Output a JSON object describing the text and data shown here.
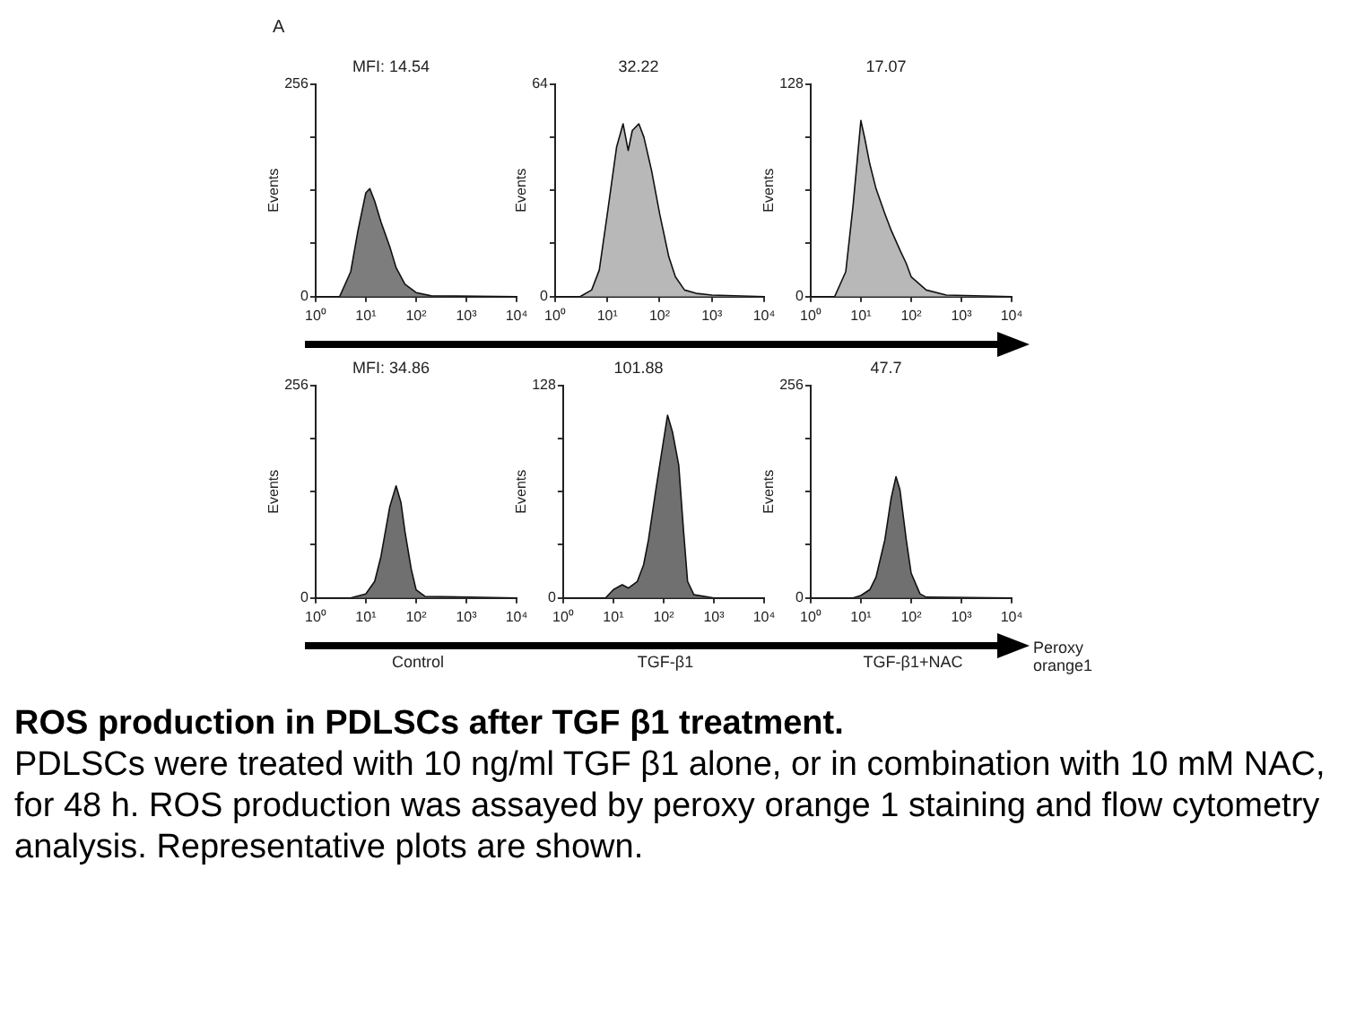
{
  "chart_data": [
    {
      "type": "area",
      "title": "MFI: 14.54",
      "ylabel": "Events",
      "annotations": [
        "A"
      ],
      "x": [
        1,
        3,
        5,
        7,
        10,
        12,
        15,
        20,
        30,
        40,
        60,
        100,
        200,
        10000
      ],
      "series": [
        {
          "color": "#7d7d7d",
          "values": [
            0,
            0,
            30,
            80,
            125,
            130,
            115,
            90,
            60,
            35,
            15,
            5,
            1,
            0
          ]
        }
      ],
      "xlim": [
        1,
        10000
      ],
      "xticks": [
        {
          "value": 1,
          "label": "10⁰"
        },
        {
          "value": 10,
          "label": "10¹"
        },
        {
          "value": 100,
          "label": "10²"
        },
        {
          "value": 1000,
          "label": "10³"
        },
        {
          "value": 10000,
          "label": "10⁴"
        }
      ],
      "ylim": [
        0,
        256
      ],
      "yticks": [
        0,
        {
          "value": 64,
          "label": null
        },
        {
          "value": 128,
          "label": null
        },
        {
          "value": 192,
          "label": null
        },
        256
      ],
      "log": "x"
    },
    {
      "type": "area",
      "title": "32.22",
      "ylabel": "Events",
      "x": [
        1,
        3,
        5,
        7,
        10,
        15,
        20,
        25,
        30,
        40,
        50,
        70,
        100,
        150,
        200,
        300,
        500,
        1000,
        10000
      ],
      "series": [
        {
          "color": "#b8b8b8",
          "values": [
            0,
            0,
            2,
            8,
            25,
            45,
            52,
            44,
            50,
            52,
            48,
            38,
            25,
            12,
            6,
            2,
            1,
            0.5,
            0
          ]
        }
      ],
      "xlim": [
        1,
        10000
      ],
      "xticks": [
        {
          "value": 1,
          "label": "10⁰"
        },
        {
          "value": 10,
          "label": "10¹"
        },
        {
          "value": 100,
          "label": "10²"
        },
        {
          "value": 1000,
          "label": "10³"
        },
        {
          "value": 10000,
          "label": "10⁴"
        }
      ],
      "ylim": [
        0,
        64
      ],
      "yticks": [
        0,
        {
          "value": 16,
          "label": null
        },
        {
          "value": 32,
          "label": null
        },
        {
          "value": 48,
          "label": null
        },
        64
      ],
      "log": "x"
    },
    {
      "type": "area",
      "title": "17.07",
      "ylabel": "Events",
      "x": [
        1,
        3,
        5,
        7,
        10,
        12,
        15,
        20,
        30,
        40,
        60,
        80,
        100,
        200,
        500,
        10000
      ],
      "series": [
        {
          "color": "#b8b8b8",
          "values": [
            0,
            0,
            15,
            55,
            106,
            95,
            80,
            65,
            50,
            40,
            28,
            20,
            12,
            4,
            1,
            0
          ]
        }
      ],
      "xlim": [
        1,
        10000
      ],
      "xticks": [
        {
          "value": 1,
          "label": "10⁰"
        },
        {
          "value": 10,
          "label": "10¹"
        },
        {
          "value": 100,
          "label": "10²"
        },
        {
          "value": 1000,
          "label": "10³"
        },
        {
          "value": 10000,
          "label": "10⁴"
        }
      ],
      "ylim": [
        0,
        128
      ],
      "yticks": [
        0,
        {
          "value": 32,
          "label": null
        },
        {
          "value": 64,
          "label": null
        },
        {
          "value": 96,
          "label": null
        },
        128
      ],
      "log": "x"
    },
    {
      "type": "area",
      "title": "MFI: 34.86",
      "ylabel": "Events",
      "xlabel": "Control",
      "x": [
        1,
        5,
        10,
        15,
        20,
        30,
        40,
        50,
        60,
        80,
        100,
        150,
        10000
      ],
      "series": [
        {
          "color": "#707070",
          "values": [
            0,
            0,
            5,
            20,
            50,
            110,
            135,
            115,
            80,
            35,
            10,
            2,
            0
          ]
        }
      ],
      "xlim": [
        1,
        10000
      ],
      "xticks": [
        {
          "value": 1,
          "label": "10⁰"
        },
        {
          "value": 10,
          "label": "10¹"
        },
        {
          "value": 100,
          "label": "10²"
        },
        {
          "value": 1000,
          "label": "10³"
        },
        {
          "value": 10000,
          "label": "10⁴"
        }
      ],
      "ylim": [
        0,
        256
      ],
      "yticks": [
        0,
        {
          "value": 64,
          "label": null
        },
        {
          "value": 128,
          "label": null
        },
        {
          "value": 192,
          "label": null
        },
        256
      ],
      "log": "x"
    },
    {
      "type": "area",
      "title": "101.88",
      "ylabel": "Events",
      "xlabel": "TGF-β1",
      "x": [
        1,
        7,
        10,
        15,
        20,
        30,
        40,
        50,
        70,
        100,
        120,
        150,
        200,
        250,
        300,
        400,
        1000,
        10000
      ],
      "series": [
        {
          "color": "#707070",
          "values": [
            0,
            0,
            5,
            8,
            6,
            10,
            20,
            35,
            65,
            95,
            110,
            100,
            80,
            40,
            10,
            2,
            0,
            0
          ]
        }
      ],
      "xlim": [
        1,
        10000
      ],
      "xticks": [
        {
          "value": 1,
          "label": "10⁰"
        },
        {
          "value": 10,
          "label": "10¹"
        },
        {
          "value": 100,
          "label": "10²"
        },
        {
          "value": 1000,
          "label": "10³"
        },
        {
          "value": 10000,
          "label": "10⁴"
        }
      ],
      "ylim": [
        0,
        128
      ],
      "yticks": [
        0,
        {
          "value": 32,
          "label": null
        },
        {
          "value": 64,
          "label": null
        },
        {
          "value": 96,
          "label": null
        },
        128
      ],
      "log": "x"
    },
    {
      "type": "area",
      "title": "47.7",
      "ylabel": "Events",
      "xlabel": "TGF-β1+NAC",
      "annotations": [
        "Peroxy orange1"
      ],
      "x": [
        1,
        7,
        10,
        15,
        20,
        30,
        40,
        50,
        60,
        80,
        100,
        150,
        200,
        10000
      ],
      "series": [
        {
          "color": "#707070",
          "values": [
            0,
            0,
            3,
            10,
            25,
            70,
            120,
            146,
            130,
            70,
            30,
            5,
            1,
            0
          ]
        }
      ],
      "xlim": [
        1,
        10000
      ],
      "xticks": [
        {
          "value": 1,
          "label": "10⁰"
        },
        {
          "value": 10,
          "label": "10¹"
        },
        {
          "value": 100,
          "label": "10²"
        },
        {
          "value": 1000,
          "label": "10³"
        },
        {
          "value": 10000,
          "label": "10⁴"
        }
      ],
      "ylim": [
        0,
        256
      ],
      "yticks": [
        0,
        {
          "value": 64,
          "label": null
        },
        {
          "value": 128,
          "label": null
        },
        {
          "value": 192,
          "label": null
        },
        256
      ],
      "log": "x"
    },
    {
      "type": "other",
      "title": "ROS production in PDLSCs after TGF β1 treatment.",
      "annotations": [
        "PDLSCs were treated with 10 ng/ml TGF β1 alone, or in combination with 10 mM NAC, for 48 h. ROS production was assayed by peroxy orange 1 staining and flow cytometry analysis. Representative plots are shown."
      ]
    }
  ]
}
